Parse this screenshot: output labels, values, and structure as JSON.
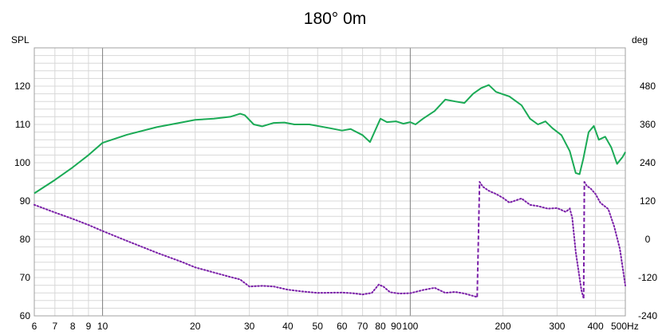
{
  "chart_data": {
    "type": "line",
    "title": "180° 0m",
    "ylabel_left": "SPL",
    "ylabel_right": "deg",
    "x_unit": "Hz",
    "x_scale": "log",
    "xlim": [
      6,
      500
    ],
    "ylim_left": [
      60,
      130
    ],
    "ylim_right": [
      -240,
      600
    ],
    "grid": true,
    "x_ticks": [
      {
        "v": 6,
        "t": "6"
      },
      {
        "v": 7,
        "t": "7"
      },
      {
        "v": 8,
        "t": "8"
      },
      {
        "v": 9,
        "t": "9"
      },
      {
        "v": 10,
        "t": "10"
      },
      {
        "v": 20,
        "t": "20"
      },
      {
        "v": 30,
        "t": "30"
      },
      {
        "v": 40,
        "t": "40"
      },
      {
        "v": 50,
        "t": "50"
      },
      {
        "v": 60,
        "t": "60"
      },
      {
        "v": 70,
        "t": "70"
      },
      {
        "v": 80,
        "t": "80"
      },
      {
        "v": 90,
        "t": "90"
      },
      {
        "v": 100,
        "t": "100"
      },
      {
        "v": 200,
        "t": "200"
      },
      {
        "v": 300,
        "t": "300"
      },
      {
        "v": 400,
        "t": "400"
      },
      {
        "v": 500,
        "t": "500Hz"
      }
    ],
    "y_ticks_left": [
      "60",
      "70",
      "80",
      "90",
      "100",
      "110",
      "120"
    ],
    "y_ticks_right": [
      "-240",
      "-120",
      "0",
      "120",
      "240",
      "360",
      "480"
    ],
    "colors": {
      "spl": "#1aaa55",
      "phase": "#7a1fa8",
      "grid": "#d8d8d8",
      "major_grid": "#7f7f7f"
    },
    "series": [
      {
        "axis": "left",
        "style": "solid",
        "points": [
          [
            6,
            92
          ],
          [
            7,
            95.5
          ],
          [
            8,
            98.8
          ],
          [
            9,
            102
          ],
          [
            10,
            105.2
          ],
          [
            12,
            107.3
          ],
          [
            15,
            109.3
          ],
          [
            18,
            110.5
          ],
          [
            20,
            111.2
          ],
          [
            23,
            111.5
          ],
          [
            26,
            112
          ],
          [
            28,
            112.8
          ],
          [
            29,
            112.4
          ],
          [
            31,
            110
          ],
          [
            33,
            109.5
          ],
          [
            36,
            110.4
          ],
          [
            39,
            110.5
          ],
          [
            42,
            110
          ],
          [
            47,
            110
          ],
          [
            55,
            109
          ],
          [
            60,
            108.4
          ],
          [
            64,
            108.8
          ],
          [
            70,
            107.2
          ],
          [
            74,
            105.4
          ],
          [
            76,
            107.5
          ],
          [
            80,
            111.5
          ],
          [
            84,
            110.6
          ],
          [
            90,
            110.8
          ],
          [
            95,
            110.2
          ],
          [
            100,
            110.6
          ],
          [
            104,
            110
          ],
          [
            110,
            111.5
          ],
          [
            120,
            113.5
          ],
          [
            130,
            116.5
          ],
          [
            140,
            116
          ],
          [
            150,
            115.6
          ],
          [
            160,
            118
          ],
          [
            170,
            119.5
          ],
          [
            180,
            120.3
          ],
          [
            190,
            118.5
          ],
          [
            210,
            117.3
          ],
          [
            230,
            115
          ],
          [
            245,
            111.5
          ],
          [
            260,
            110
          ],
          [
            275,
            110.8
          ],
          [
            290,
            109
          ],
          [
            310,
            107.2
          ],
          [
            330,
            103
          ],
          [
            345,
            97.3
          ],
          [
            355,
            97
          ],
          [
            365,
            101
          ],
          [
            380,
            108
          ],
          [
            395,
            109.6
          ],
          [
            410,
            106
          ],
          [
            430,
            106.8
          ],
          [
            450,
            104
          ],
          [
            470,
            99.7
          ],
          [
            490,
            101.5
          ],
          [
            500,
            102.8
          ]
        ]
      },
      {
        "axis": "right",
        "style": "dotted",
        "points": [
          [
            6,
            108
          ],
          [
            7,
            84
          ],
          [
            8,
            64
          ],
          [
            9,
            45
          ],
          [
            10,
            26
          ],
          [
            12,
            -5
          ],
          [
            15,
            -42
          ],
          [
            18,
            -70
          ],
          [
            20,
            -88
          ],
          [
            23,
            -104
          ],
          [
            26,
            -118
          ],
          [
            28,
            -126
          ],
          [
            30,
            -148
          ],
          [
            33,
            -146
          ],
          [
            36,
            -148
          ],
          [
            40,
            -158
          ],
          [
            45,
            -164
          ],
          [
            50,
            -168
          ],
          [
            60,
            -167
          ],
          [
            65,
            -169
          ],
          [
            70,
            -173
          ],
          [
            75,
            -168
          ],
          [
            79,
            -142
          ],
          [
            82,
            -149
          ],
          [
            86,
            -166
          ],
          [
            92,
            -170
          ],
          [
            100,
            -169
          ],
          [
            110,
            -159
          ],
          [
            120,
            -152
          ],
          [
            130,
            -168
          ],
          [
            140,
            -165
          ],
          [
            150,
            -170
          ],
          [
            165,
            -181
          ],
          [
            168,
            180
          ],
          [
            172,
            165
          ],
          [
            180,
            152
          ],
          [
            190,
            142
          ],
          [
            200,
            130
          ],
          [
            210,
            115
          ],
          [
            230,
            128
          ],
          [
            245,
            108
          ],
          [
            260,
            104
          ],
          [
            280,
            96
          ],
          [
            300,
            98
          ],
          [
            320,
            86
          ],
          [
            330,
            96
          ],
          [
            336,
            68
          ],
          [
            345,
            -40
          ],
          [
            360,
            -160
          ],
          [
            366,
            -185
          ],
          [
            368,
            180
          ],
          [
            375,
            167
          ],
          [
            385,
            160
          ],
          [
            400,
            142
          ],
          [
            415,
            114
          ],
          [
            440,
            95
          ],
          [
            460,
            40
          ],
          [
            480,
            -30
          ],
          [
            500,
            -145
          ]
        ]
      }
    ]
  }
}
